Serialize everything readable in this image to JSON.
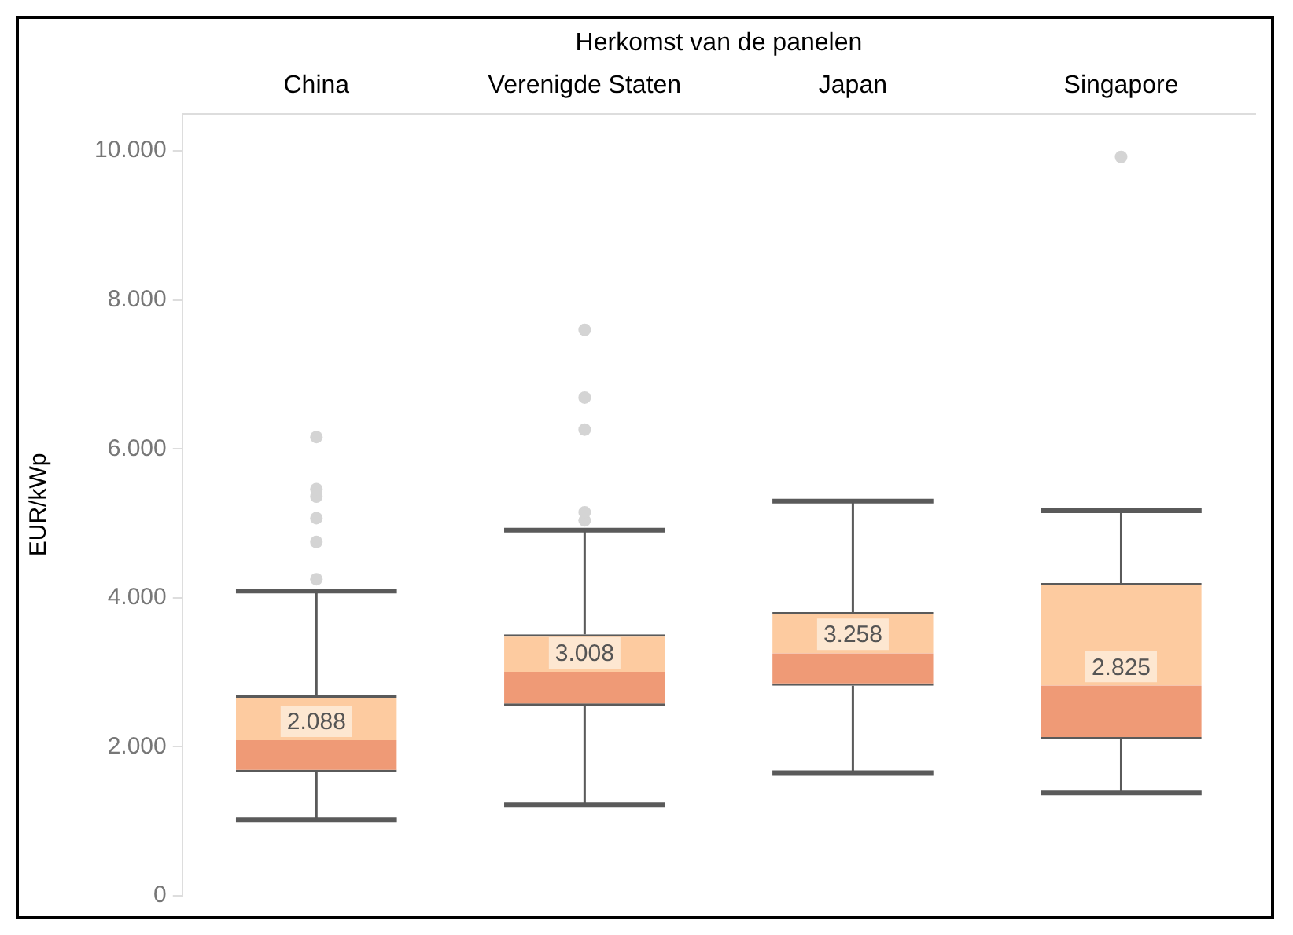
{
  "chart_data": {
    "type": "box",
    "xlabel": "Herkomst van de panelen",
    "ylabel": "EUR/kWp",
    "categories": [
      "China",
      "Verenigde Staten",
      "Japan",
      "Singapore"
    ],
    "colors": [
      "#ef9a76",
      "#fdcba0"
    ],
    "series": [
      {
        "boxes": [
          {
            "low": 1020,
            "q1": 1660,
            "median": 2088,
            "q3": 2690,
            "high": 4090,
            "outliers": [
              4250,
              4750,
              5070,
              5360,
              5460,
              6160
            ]
          },
          {
            "low": 1220,
            "q1": 2550,
            "median": 3008,
            "q3": 3510,
            "high": 4910,
            "outliers": [
              5040,
              5150,
              6260,
              6690,
              7600
            ]
          },
          {
            "low": 1650,
            "q1": 2820,
            "median": 3258,
            "q3": 3810,
            "high": 5300
          },
          {
            "low": 1380,
            "q1": 2100,
            "median": 2825,
            "q3": 4200,
            "high": 5170,
            "outliers": [
              9920
            ]
          }
        ],
        "value_labels": [
          "2.088",
          "3.008",
          "3.258",
          "2.825"
        ]
      }
    ],
    "ylim": [
      0,
      10500
    ],
    "yticks": [
      0,
      {
        "value": 2000,
        "label": "2.000"
      },
      {
        "value": 4000,
        "label": "4.000"
      },
      {
        "value": 6000,
        "label": "6.000"
      },
      {
        "value": 8000,
        "label": "8.000"
      },
      {
        "value": 10000,
        "label": "10.000"
      }
    ],
    "grid": false,
    "legend": false
  }
}
